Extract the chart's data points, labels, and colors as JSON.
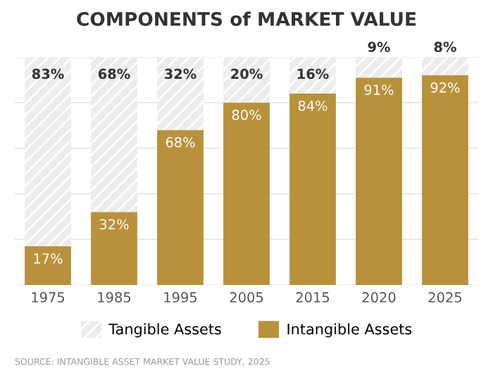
{
  "chart_data": {
    "type": "bar",
    "title": "COMPONENTS of MARKET VALUE",
    "stacked": true,
    "categories": [
      "1975",
      "1985",
      "1995",
      "2005",
      "2015",
      "2020",
      "2025"
    ],
    "series": [
      {
        "name": "Intangible Assets",
        "color": "#b8913a",
        "values": [
          17,
          32,
          68,
          80,
          84,
          91,
          92
        ],
        "value_labels": [
          "17%",
          "32%",
          "68%",
          "80%",
          "84%",
          "91%",
          "92%"
        ]
      },
      {
        "name": "Tangible Assets",
        "color": "#ececec",
        "values": [
          83,
          68,
          32,
          20,
          16,
          9,
          8
        ],
        "value_labels": [
          "83%",
          "68%",
          "32%",
          "20%",
          "16%",
          "9%",
          "8%"
        ]
      }
    ],
    "grid": "y",
    "legend": "bottom",
    "tick_labels": "x",
    "annotations": [
      "SOURCE: INTANGIBLE ASSET MARKET VALUE STUDY, 2025"
    ]
  }
}
